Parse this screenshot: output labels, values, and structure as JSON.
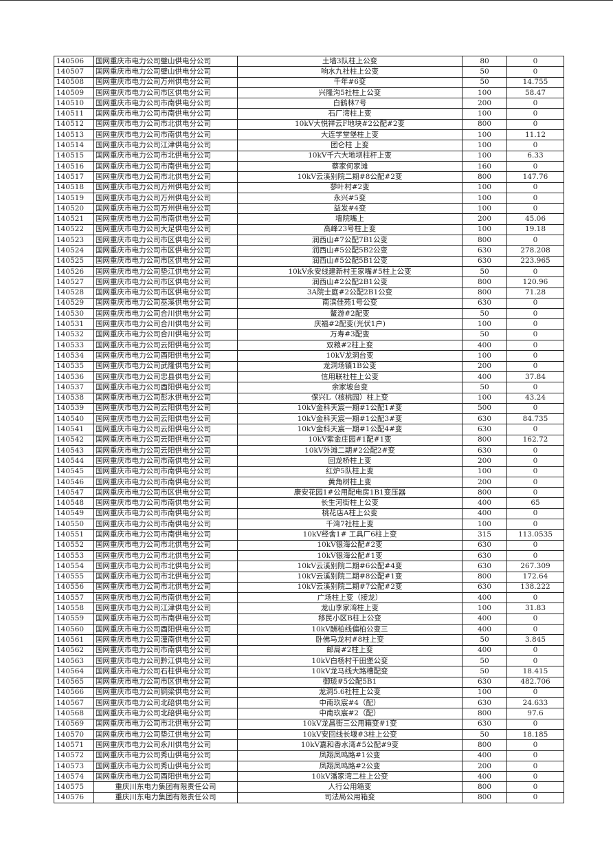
{
  "table": {
    "rows": [
      [
        "140506",
        "国网重庆市电力公司璧山供电分公司",
        "土墙3队柱上公变",
        "80",
        "0"
      ],
      [
        "140507",
        "国网重庆市电力公司璧山供电分公司",
        "响水九社柱上公变",
        "50",
        "0"
      ],
      [
        "140508",
        "国网重庆市电力公司万州供电分公司",
        "千年#6变",
        "50",
        "14.755"
      ],
      [
        "140509",
        "国网重庆市电力公司市区供电分公司",
        "兴隆沟5社柱上公变",
        "100",
        "58.47"
      ],
      [
        "140510",
        "国网重庆市电力公司市南供电分公司",
        "白鹤林7号",
        "200",
        "0"
      ],
      [
        "140511",
        "国网重庆市电力公司市南供电分公司",
        "石厂湾柱上变",
        "100",
        "0"
      ],
      [
        "140512",
        "国网重庆市电力公司市北供电分公司",
        "10kV大悦祥云F地块#2公配#2变",
        "800",
        "0"
      ],
      [
        "140513",
        "国网重庆市电力公司市南供电分公司",
        "大连学堂堡柱上变",
        "100",
        "11.12"
      ],
      [
        "140514",
        "国网重庆市电力公司江津供电分公司",
        "团仑柱 上变",
        "100",
        "0"
      ],
      [
        "140515",
        "国网重庆市电力公司市北供电分公司",
        "10kV千六大地坝柱杆上变",
        "100",
        "6.33"
      ],
      [
        "140516",
        "国网重庆市电力公司市南供电分公司",
        "蔡家何家滩",
        "160",
        "0"
      ],
      [
        "140517",
        "国网重庆市电力公司市北供电分公司",
        "10kV云溪别院二期#8公配#2变",
        "800",
        "147.76"
      ],
      [
        "140518",
        "国网重庆市电力公司万州供电分公司",
        "蓼叶村#2变",
        "100",
        "0"
      ],
      [
        "140519",
        "国网重庆市电力公司万州供电分公司",
        "永兴#5变",
        "100",
        "0"
      ],
      [
        "140520",
        "国网重庆市电力公司万州供电分公司",
        "益发#4变",
        "100",
        "0"
      ],
      [
        "140521",
        "国网重庆市电力公司市南供电分公司",
        "墙院嘴上",
        "200",
        "45.06"
      ],
      [
        "140522",
        "国网重庆市电力公司大足供电分公司",
        "高峰23号柱上变",
        "100",
        "19.18"
      ],
      [
        "140523",
        "国网重庆市电力公司市区供电分公司",
        "润西山#7公配7B1公变",
        "800",
        "0"
      ],
      [
        "140524",
        "国网重庆市电力公司市区供电分公司",
        "润西山#5公配5B2公变",
        "630",
        "278.208"
      ],
      [
        "140525",
        "国网重庆市电力公司市区供电分公司",
        "润西山#5公配5B1公变",
        "630",
        "223.965"
      ],
      [
        "140526",
        "国网重庆市电力公司垫江供电分公司",
        "10kV永安线建新村王家嘴#5柱上公变",
        "50",
        "0"
      ],
      [
        "140527",
        "国网重庆市电力公司市区供电分公司",
        "润西山#2公配2B1公变",
        "800",
        "120.96"
      ],
      [
        "140528",
        "国网重庆市电力公司市区供电分公司",
        "3A院士庭#2公配2B1公变",
        "800",
        "71.28"
      ],
      [
        "140529",
        "国网重庆市电力公司巫溪供电分公司",
        "南滨佳苑1号公变",
        "630",
        "0"
      ],
      [
        "140530",
        "国网重庆市电力公司合川供电分公司",
        "鳌游#2配变",
        "50",
        "0"
      ],
      [
        "140531",
        "国网重庆市电力公司合川供电分公司",
        "庆福#2配变(光伏1户)",
        "100",
        "0"
      ],
      [
        "140532",
        "国网重庆市电力公司合川供电分公司",
        "万寿#3配变",
        "50",
        "0"
      ],
      [
        "140533",
        "国网重庆市电力公司云阳供电分公司",
        "双粮#2柱上变",
        "400",
        "0"
      ],
      [
        "140534",
        "国网重庆市电力公司酉阳供电分公司",
        "10kV龙洞台变",
        "100",
        "0"
      ],
      [
        "140535",
        "国网重庆市电力公司武隆供电分公司",
        "龙洞场镇1B公变",
        "200",
        "0"
      ],
      [
        "140536",
        "国网重庆市电力公司忠县供电分公司",
        "信用联社柱上公变",
        "400",
        "37.84"
      ],
      [
        "140537",
        "国网重庆市电力公司酉阳供电分公司",
        "余家坡台变",
        "50",
        "0"
      ],
      [
        "140538",
        "国网重庆市电力公司彭水供电分公司",
        "保兴L（核桃园）柱上变",
        "100",
        "43.24"
      ],
      [
        "140539",
        "国网重庆市电力公司云阳供电分公司",
        "10kV金科天宸一期#1公配1#变",
        "500",
        "0"
      ],
      [
        "140540",
        "国网重庆市电力公司云阳供电分公司",
        "10kV金科天宸一期#1公配3#变",
        "630",
        "84.735"
      ],
      [
        "140541",
        "国网重庆市电力公司云阳供电分公司",
        "10kV金科天宸一期#1公配4#变",
        "630",
        "0"
      ],
      [
        "140542",
        "国网重庆市电力公司云阳供电分公司",
        "10kV紫金庄园#1配#1变",
        "800",
        "162.72"
      ],
      [
        "140543",
        "国网重庆市电力公司云阳供电分公司",
        "10kV外滩二期#2公配2#变",
        "630",
        "0"
      ],
      [
        "140544",
        "国网重庆市电力公司市南供电分公司",
        "回龙桥柱上变",
        "200",
        "0"
      ],
      [
        "140545",
        "国网重庆市电力公司市南供电分公司",
        "红炉5队柱上变",
        "100",
        "0"
      ],
      [
        "140546",
        "国网重庆市电力公司市南供电分公司",
        "黄角树柱上变",
        "200",
        "0"
      ],
      [
        "140547",
        "国网重庆市电力公司市区供电分公司",
        "康安花园1#公用配电房1B1变压器",
        "800",
        "0"
      ],
      [
        "140548",
        "国网重庆市电力公司市南供电分公司",
        "长生河街柱上公变",
        "400",
        "65"
      ],
      [
        "140549",
        "国网重庆市电力公司市南供电分公司",
        "桃花店A柱上公变",
        "400",
        "0"
      ],
      [
        "140550",
        "国网重庆市电力公司市南供电分公司",
        "千湾7社柱上变",
        "100",
        "0"
      ],
      [
        "140551",
        "国网重庆市电力公司市南供电分公司",
        "10kV经舍1# 工具厂6柱上变",
        "315",
        "113.0535"
      ],
      [
        "140552",
        "国网重庆市电力公司市北供电分公司",
        "10kV银海公配#2变",
        "630",
        "0"
      ],
      [
        "140553",
        "国网重庆市电力公司市北供电分公司",
        "10kV银海公配#1变",
        "630",
        "0"
      ],
      [
        "140554",
        "国网重庆市电力公司市北供电分公司",
        "10kV云溪别院二期#6公配#4变",
        "630",
        "267.309"
      ],
      [
        "140555",
        "国网重庆市电力公司市北供电分公司",
        "10kV云溪别院二期#8公配#1变",
        "800",
        "172.64"
      ],
      [
        "140556",
        "国网重庆市电力公司市北供电分公司",
        "10kV云溪别院二期#7公配#2变",
        "630",
        "138.222"
      ],
      [
        "140557",
        "国网重庆市电力公司市南供电分公司",
        "广场柱上变（接龙）",
        "400",
        "0"
      ],
      [
        "140558",
        "国网重庆市电力公司江津供电分公司",
        "龙山李家湾柱上变",
        "100",
        "31.83"
      ],
      [
        "140559",
        "国网重庆市电力公司市南供电分公司",
        "移民小区B柱上公变",
        "400",
        "0"
      ],
      [
        "140560",
        "国网重庆市电力公司酉阳供电分公司",
        "10kV酬柏线偏柏公变三",
        "400",
        "0"
      ],
      [
        "140561",
        "国网重庆市电力公司潼南供电分公司",
        "卧佛马龙村#8柱上变",
        "50",
        "3.845"
      ],
      [
        "140562",
        "国网重庆市电力公司市南供电分公司",
        "邮局#2柱上变",
        "400",
        "0"
      ],
      [
        "140563",
        "国网重庆市电力公司黔江供电分公司",
        "10kV白杨村干田堡公变",
        "50",
        "0"
      ],
      [
        "140564",
        "国网重庆市电力公司石柱供电分公司",
        "10kV龙马线大路槽配变",
        "50",
        "18.415"
      ],
      [
        "140565",
        "国网重庆市电力公司市区供电分公司",
        "御珑#5公配5B1",
        "630",
        "482.706"
      ],
      [
        "140566",
        "国网重庆市电力公司铜梁供电分公司",
        "龙洞5.6社柱上公变",
        "100",
        "0"
      ],
      [
        "140567",
        "国网重庆市电力公司北碚供电分公司",
        "中南玖宸#4（配）",
        "630",
        "24.633"
      ],
      [
        "140568",
        "国网重庆市电力公司北碚供电分公司",
        "中南玖宸#2（配）",
        "800",
        "97.6"
      ],
      [
        "140569",
        "国网重庆市电力公司市北供电分公司",
        "10kV龙昌街三公用箱变#1变",
        "630",
        "0"
      ],
      [
        "140570",
        "国网重庆市电力公司垫江供电分公司",
        "10kV安回线长堰#3柱上公变",
        "50",
        "18.185"
      ],
      [
        "140571",
        "国网重庆市电力公司永川供电分公司",
        "10kV嘉和香水湾#5公配#9变",
        "800",
        "0"
      ],
      [
        "140572",
        "国网重庆市电力公司秀山供电分公司",
        "凤翔凤鸣路#1公变",
        "400",
        "0"
      ],
      [
        "140573",
        "国网重庆市电力公司秀山供电分公司",
        "凤翔凤鸣路#2公变",
        "200",
        "0"
      ],
      [
        "140574",
        "国网重庆市电力公司酉阳供电分公司",
        "10kV潘家湾二柱上公变",
        "400",
        "0"
      ],
      [
        "140575",
        "重庆川东电力集团有限责任公司",
        "人行公用箱变",
        "800",
        "0"
      ],
      [
        "140576",
        "重庆川东电力集团有限责任公司",
        "司法局公用箱变",
        "800",
        "0"
      ]
    ]
  }
}
